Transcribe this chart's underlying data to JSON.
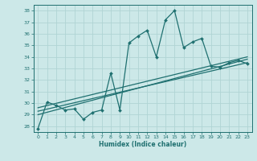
{
  "xlabel": "Humidex (Indice chaleur)",
  "bg_color": "#cce8e8",
  "grid_color": "#b0d4d4",
  "line_color": "#1f7070",
  "xlim": [
    -0.5,
    23.5
  ],
  "ylim": [
    27.5,
    38.5
  ],
  "yticks": [
    28,
    29,
    30,
    31,
    32,
    33,
    34,
    35,
    36,
    37,
    38
  ],
  "xticks": [
    0,
    1,
    2,
    3,
    4,
    5,
    6,
    7,
    8,
    9,
    10,
    11,
    12,
    13,
    14,
    15,
    16,
    17,
    18,
    19,
    20,
    21,
    22,
    23
  ],
  "series1_x": [
    0,
    1,
    2,
    3,
    4,
    5,
    6,
    7,
    8,
    9,
    10,
    11,
    12,
    13,
    14,
    15,
    16,
    17,
    18,
    19,
    20,
    21,
    22,
    23
  ],
  "series1_y": [
    27.8,
    30.1,
    29.8,
    29.4,
    29.5,
    28.6,
    29.2,
    29.4,
    32.6,
    29.4,
    35.2,
    35.8,
    36.3,
    34.0,
    37.2,
    38.0,
    34.8,
    35.3,
    35.6,
    33.2,
    33.1,
    33.5,
    33.7,
    33.4
  ],
  "series2_x": [
    0,
    23
  ],
  "series2_y": [
    29.0,
    33.8
  ],
  "series3_x": [
    0,
    23
  ],
  "series3_y": [
    29.3,
    33.5
  ],
  "series4_x": [
    0,
    23
  ],
  "series4_y": [
    29.6,
    34.0
  ]
}
